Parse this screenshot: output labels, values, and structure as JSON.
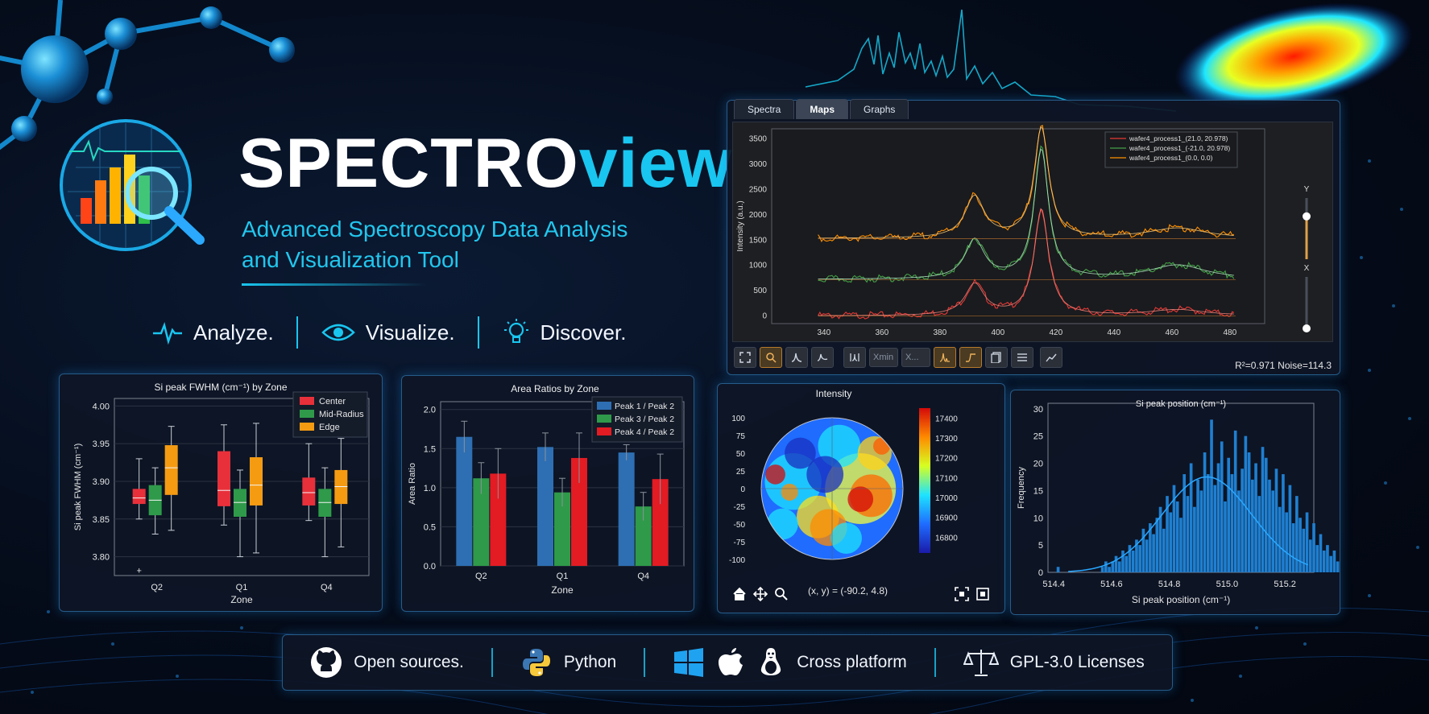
{
  "header": {
    "title_part1": "SPECTRO",
    "title_part2": "view",
    "subtitle_line1": "Advanced Spectroscopy Data Analysis",
    "subtitle_line2": "and Visualization Tool",
    "motto": [
      "Analyze.",
      "Visualize.",
      "Discover."
    ]
  },
  "app": {
    "tabs": [
      "Spectra",
      "Maps",
      "Graphs"
    ],
    "active_tab": "Maps",
    "xmin_placeholder": "Xmin",
    "xmax_placeholder": "X...",
    "fit_info": "R²=0.971 Noise=114.3",
    "slider_y_label": "Y",
    "slider_x_label": "X",
    "slider_level": 0.7
  },
  "footer": {
    "open_source": "Open sources.",
    "python": "Python",
    "platform": "Cross platform",
    "license": "GPL-3.0 Licenses"
  },
  "map": {
    "coord_readout": "(x, y) = (-90.2, 4.8)"
  },
  "colors": {
    "accent": "#19c6f0",
    "center": "#e8303a",
    "mid_radius": "#2f9a4a",
    "edge": "#f59b12",
    "ratio1": "#2e6fb3",
    "ratio2": "#2f9a4a",
    "ratio3": "#e31b23",
    "hist": "#1f7fd0"
  },
  "chart_data": [
    {
      "id": "spectra",
      "type": "line",
      "title": "",
      "xlabel": "",
      "ylabel": "Intensity (a.u.)",
      "xlim": [
        322,
        492
      ],
      "ylim": [
        -150,
        3700
      ],
      "x_ticks": [
        340,
        360,
        380,
        400,
        420,
        440,
        460,
        480
      ],
      "y_ticks": [
        0,
        500,
        1000,
        1500,
        2000,
        2500,
        3000,
        3500
      ],
      "series": [
        {
          "name": "wafer4_process1_(21.0, 20.978)",
          "color": "#e53935",
          "baseline": 0,
          "peaks": [
            [
              392,
              620,
              4
            ],
            [
              415,
              2100,
              3
            ],
            [
              462,
              120,
              12
            ]
          ]
        },
        {
          "name": "wafer4_process1_(-21.0, 20.978)",
          "color": "#43a047",
          "baseline": 720,
          "peaks": [
            [
              392,
              770,
              4
            ],
            [
              415,
              2550,
              3
            ],
            [
              462,
              280,
              12
            ]
          ]
        },
        {
          "name": "wafer4_process1_(0.0, 0.0)",
          "color": "#ff8f00",
          "baseline": 1530,
          "peaks": [
            [
              392,
              820,
              4
            ],
            [
              415,
              2180,
              3
            ],
            [
              462,
              200,
              12
            ]
          ]
        }
      ]
    },
    {
      "id": "fwhm",
      "type": "box",
      "title": "Si peak FWHM (cm⁻¹) by Zone",
      "xlabel": "Zone",
      "ylabel": "Si peak FWHM (cm⁻¹)",
      "ylim": [
        3.775,
        4.01
      ],
      "y_ticks": [
        "3.80",
        "3.85",
        "3.90",
        "3.95",
        "4.00"
      ],
      "categories": [
        "Q2",
        "Q1",
        "Q4"
      ],
      "legend": [
        "Center",
        "Mid-Radius",
        "Edge"
      ],
      "boxes": [
        [
          [
            3.85,
            3.87,
            3.878,
            3.89,
            3.93
          ],
          [
            3.83,
            3.855,
            3.875,
            3.895,
            3.918
          ],
          [
            3.835,
            3.882,
            3.918,
            3.948,
            3.973
          ]
        ],
        [
          [
            3.842,
            3.867,
            3.888,
            3.94,
            3.975
          ],
          [
            3.8,
            3.853,
            3.872,
            3.89,
            3.915
          ],
          [
            3.805,
            3.868,
            3.895,
            3.932,
            3.977
          ]
        ],
        [
          [
            3.848,
            3.868,
            3.885,
            3.905,
            3.95
          ],
          [
            3.8,
            3.853,
            3.872,
            3.89,
            3.918
          ],
          [
            3.813,
            3.87,
            3.893,
            3.915,
            3.957
          ]
        ]
      ],
      "outliers": [
        [
          3.782,
          0
        ]
      ]
    },
    {
      "id": "ratios",
      "type": "bar",
      "title": "Area Ratios by Zone",
      "xlabel": "Zone",
      "ylabel": "Area Ratio",
      "ylim": [
        0,
        2.1
      ],
      "y_ticks": [
        "0.0",
        "0.5",
        "1.0",
        "1.5",
        "2.0"
      ],
      "categories": [
        "Q2",
        "Q1",
        "Q4"
      ],
      "series": [
        {
          "name": "Peak 1 / Peak 2",
          "values": [
            1.65,
            1.52,
            1.45
          ],
          "err": [
            0.2,
            0.18,
            0.1
          ]
        },
        {
          "name": "Peak 3 / Peak 2",
          "values": [
            1.12,
            0.94,
            0.76
          ],
          "err": [
            0.2,
            0.18,
            0.18
          ]
        },
        {
          "name": "Peak 4 / Peak 2",
          "values": [
            1.18,
            1.38,
            1.11
          ],
          "err": [
            0.32,
            0.32,
            0.32
          ]
        }
      ]
    },
    {
      "id": "wafer_map",
      "type": "heatmap",
      "title": "Intensity",
      "xlim": [
        -100,
        100
      ],
      "ylim": [
        -100,
        100
      ],
      "y_ticks": [
        100,
        75,
        50,
        25,
        0,
        -25,
        -50,
        -75,
        -100
      ],
      "colorbar_ticks": [
        17400,
        17300,
        17200,
        17100,
        17000,
        16900,
        16800
      ],
      "colorbar_range": [
        16720,
        17450
      ]
    },
    {
      "id": "histogram",
      "type": "bar",
      "title": "Si peak position (cm⁻¹)",
      "xlabel": "Si peak position (cm⁻¹)",
      "ylabel": "Frequency",
      "xlim": [
        514.38,
        515.3
      ],
      "ylim": [
        0,
        31
      ],
      "x_ticks": [
        "514.4",
        "514.6",
        "514.8",
        "515.0",
        "515.2"
      ],
      "y_ticks": [
        0,
        5,
        10,
        15,
        20,
        25,
        30
      ],
      "bin_width": 0.0118,
      "bins_start": 514.41,
      "counts": [
        1,
        0,
        0,
        0,
        0,
        0,
        0,
        0,
        0,
        0,
        0,
        0,
        0,
        1,
        2,
        1,
        2,
        3,
        2,
        4,
        3,
        5,
        4,
        6,
        5,
        8,
        6,
        9,
        7,
        10,
        12,
        8,
        14,
        11,
        16,
        13,
        10,
        18,
        14,
        20,
        12,
        17,
        15,
        22,
        18,
        28,
        16,
        20,
        24,
        13,
        21,
        18,
        26,
        15,
        19,
        25,
        22,
        17,
        20,
        14,
        23,
        21,
        17,
        15,
        19,
        12,
        18,
        11,
        16,
        9,
        14,
        10,
        8,
        11,
        6,
        9,
        5,
        7,
        4,
        5,
        3,
        4,
        2,
        3,
        2
      ],
      "fit_peak": 17.5,
      "fit_mu": 514.93,
      "fit_sigma": 0.155
    }
  ]
}
